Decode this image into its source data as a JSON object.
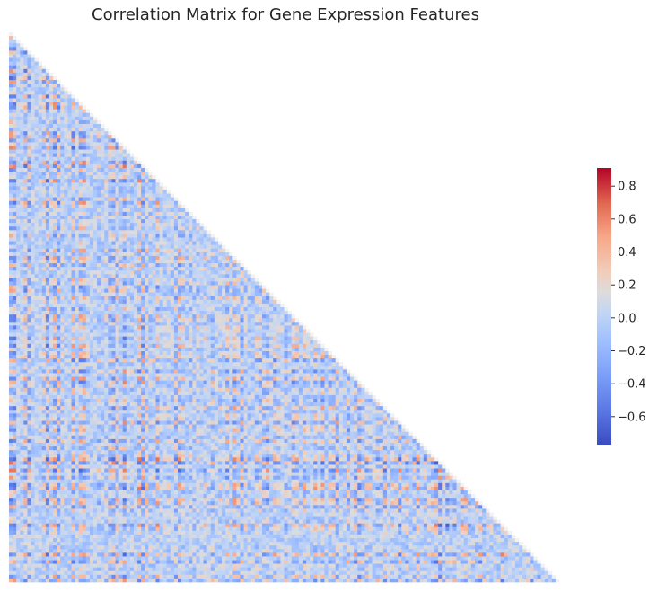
{
  "chart_data": {
    "type": "heatmap",
    "title": "Correlation Matrix for Gene Expression Features",
    "mask": "upper-triangle",
    "n_features": 150,
    "axis_labels_shown": false,
    "grid": false,
    "colormap": "coolwarm",
    "colors": {
      "low": "#3b4cc0",
      "mid": "#dddddd",
      "high": "#b40426"
    },
    "vmin": -0.77,
    "vmax": 0.91,
    "colorbar": {
      "placement": "right",
      "ticks": [
        0.8,
        0.6,
        0.4,
        0.2,
        0.0,
        -0.2,
        -0.4,
        -0.6
      ],
      "tick_labels": [
        "0.8",
        "0.6",
        "0.4",
        "0.2",
        "0.0",
        "−0.2",
        "−0.4",
        "−0.6"
      ]
    }
  }
}
